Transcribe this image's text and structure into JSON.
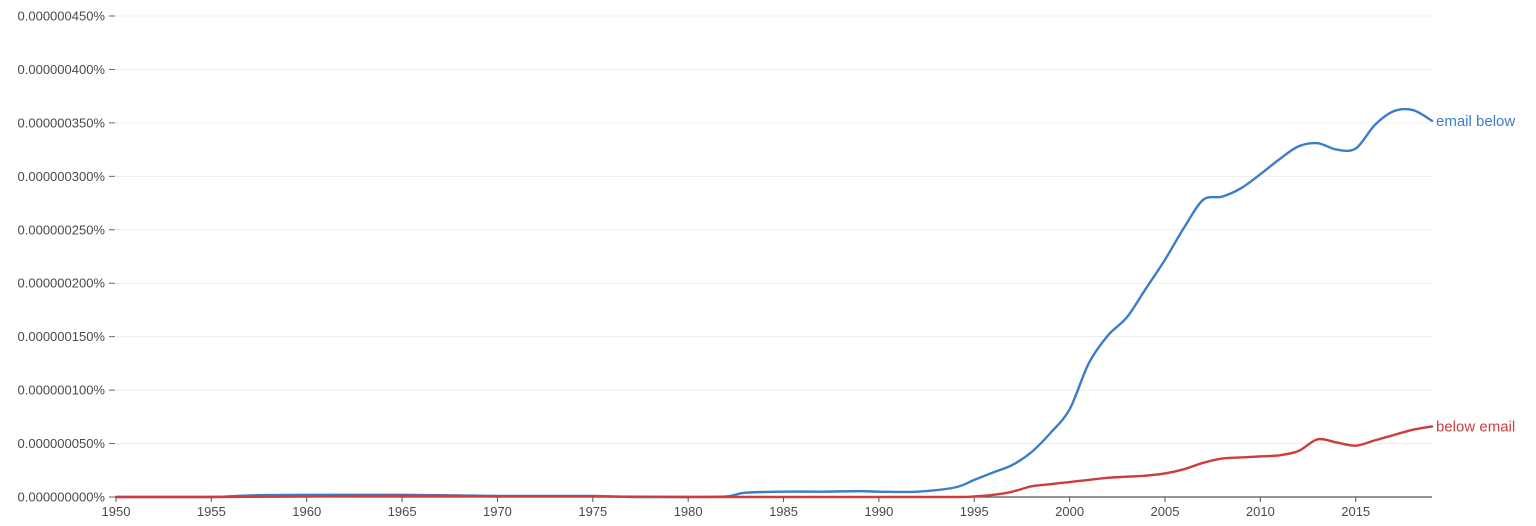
{
  "chart_data": {
    "type": "line",
    "title": "",
    "xlabel": "",
    "ylabel": "",
    "xlim": [
      1950,
      2019
    ],
    "ylim": [
      0,
      4.5e-07
    ],
    "grid": true,
    "legend": "inline-right",
    "x_ticks": [
      "1950",
      "1955",
      "1960",
      "1965",
      "1970",
      "1975",
      "1980",
      "1985",
      "1990",
      "1995",
      "2000",
      "2005",
      "2010",
      "2015"
    ],
    "y_ticks": [
      {
        "value": 0,
        "label": "0.000000000%"
      },
      {
        "value": 5e-08,
        "label": "0.000000050%"
      },
      {
        "value": 1e-07,
        "label": "0.000000100%"
      },
      {
        "value": 1.5e-07,
        "label": "0.000000150%"
      },
      {
        "value": 2e-07,
        "label": "0.000000200%"
      },
      {
        "value": 2.5e-07,
        "label": "0.000000250%"
      },
      {
        "value": 3e-07,
        "label": "0.000000300%"
      },
      {
        "value": 3.5e-07,
        "label": "0.000000350%"
      },
      {
        "value": 4e-07,
        "label": "0.000000400%"
      },
      {
        "value": 4.5e-07,
        "label": "0.000000450%"
      }
    ],
    "series": [
      {
        "name": "email below",
        "color": "#3b7ec8",
        "points": [
          [
            1950,
            0
          ],
          [
            1955,
            0
          ],
          [
            1957,
            1.5e-09
          ],
          [
            1960,
            2e-09
          ],
          [
            1965,
            2e-09
          ],
          [
            1968,
            1.5e-09
          ],
          [
            1970,
            1e-09
          ],
          [
            1975,
            1e-09
          ],
          [
            1977,
            0
          ],
          [
            1980,
            0
          ],
          [
            1982,
            5e-10
          ],
          [
            1983,
            4e-09
          ],
          [
            1985,
            5e-09
          ],
          [
            1987,
            5e-09
          ],
          [
            1989,
            5.5e-09
          ],
          [
            1990,
            5e-09
          ],
          [
            1992,
            5e-09
          ],
          [
            1994,
            9e-09
          ],
          [
            1995,
            1.6e-08
          ],
          [
            1996,
            2.3e-08
          ],
          [
            1997,
            3e-08
          ],
          [
            1998,
            4.2e-08
          ],
          [
            1999,
            6e-08
          ],
          [
            2000,
            8.2e-08
          ],
          [
            2001,
            1.25e-07
          ],
          [
            2002,
            1.51e-07
          ],
          [
            2003,
            1.68e-07
          ],
          [
            2004,
            1.95e-07
          ],
          [
            2005,
            2.22e-07
          ],
          [
            2006,
            2.52e-07
          ],
          [
            2007,
            2.78e-07
          ],
          [
            2008,
            2.81e-07
          ],
          [
            2009,
            2.89e-07
          ],
          [
            2010,
            3.02e-07
          ],
          [
            2011,
            3.16e-07
          ],
          [
            2012,
            3.28e-07
          ],
          [
            2013,
            3.31e-07
          ],
          [
            2014,
            3.25e-07
          ],
          [
            2015,
            3.26e-07
          ],
          [
            2016,
            3.48e-07
          ],
          [
            2017,
            3.61e-07
          ],
          [
            2018,
            3.62e-07
          ],
          [
            2019,
            3.52e-07
          ]
        ]
      },
      {
        "name": "below email",
        "color": "#cc3d3d",
        "points": [
          [
            1950,
            0
          ],
          [
            1955,
            0
          ],
          [
            1960,
            5e-10
          ],
          [
            1963,
            1e-09
          ],
          [
            1968,
            1e-09
          ],
          [
            1970,
            5e-10
          ],
          [
            1975,
            5e-10
          ],
          [
            1980,
            0
          ],
          [
            1985,
            0
          ],
          [
            1990,
            0
          ],
          [
            1994,
            0
          ],
          [
            1995,
            5e-10
          ],
          [
            1996,
            2e-09
          ],
          [
            1997,
            5e-09
          ],
          [
            1998,
            1e-08
          ],
          [
            1999,
            1.2e-08
          ],
          [
            2000,
            1.4e-08
          ],
          [
            2001,
            1.6e-08
          ],
          [
            2002,
            1.8e-08
          ],
          [
            2003,
            1.9e-08
          ],
          [
            2004,
            2e-08
          ],
          [
            2005,
            2.2e-08
          ],
          [
            2006,
            2.6e-08
          ],
          [
            2007,
            3.2e-08
          ],
          [
            2008,
            3.6e-08
          ],
          [
            2009,
            3.7e-08
          ],
          [
            2010,
            3.8e-08
          ],
          [
            2011,
            3.9e-08
          ],
          [
            2012,
            4.3e-08
          ],
          [
            2013,
            5.4e-08
          ],
          [
            2014,
            5.1e-08
          ],
          [
            2015,
            4.8e-08
          ],
          [
            2016,
            5.3e-08
          ],
          [
            2017,
            5.8e-08
          ],
          [
            2018,
            6.3e-08
          ],
          [
            2019,
            6.6e-08
          ]
        ]
      }
    ]
  }
}
